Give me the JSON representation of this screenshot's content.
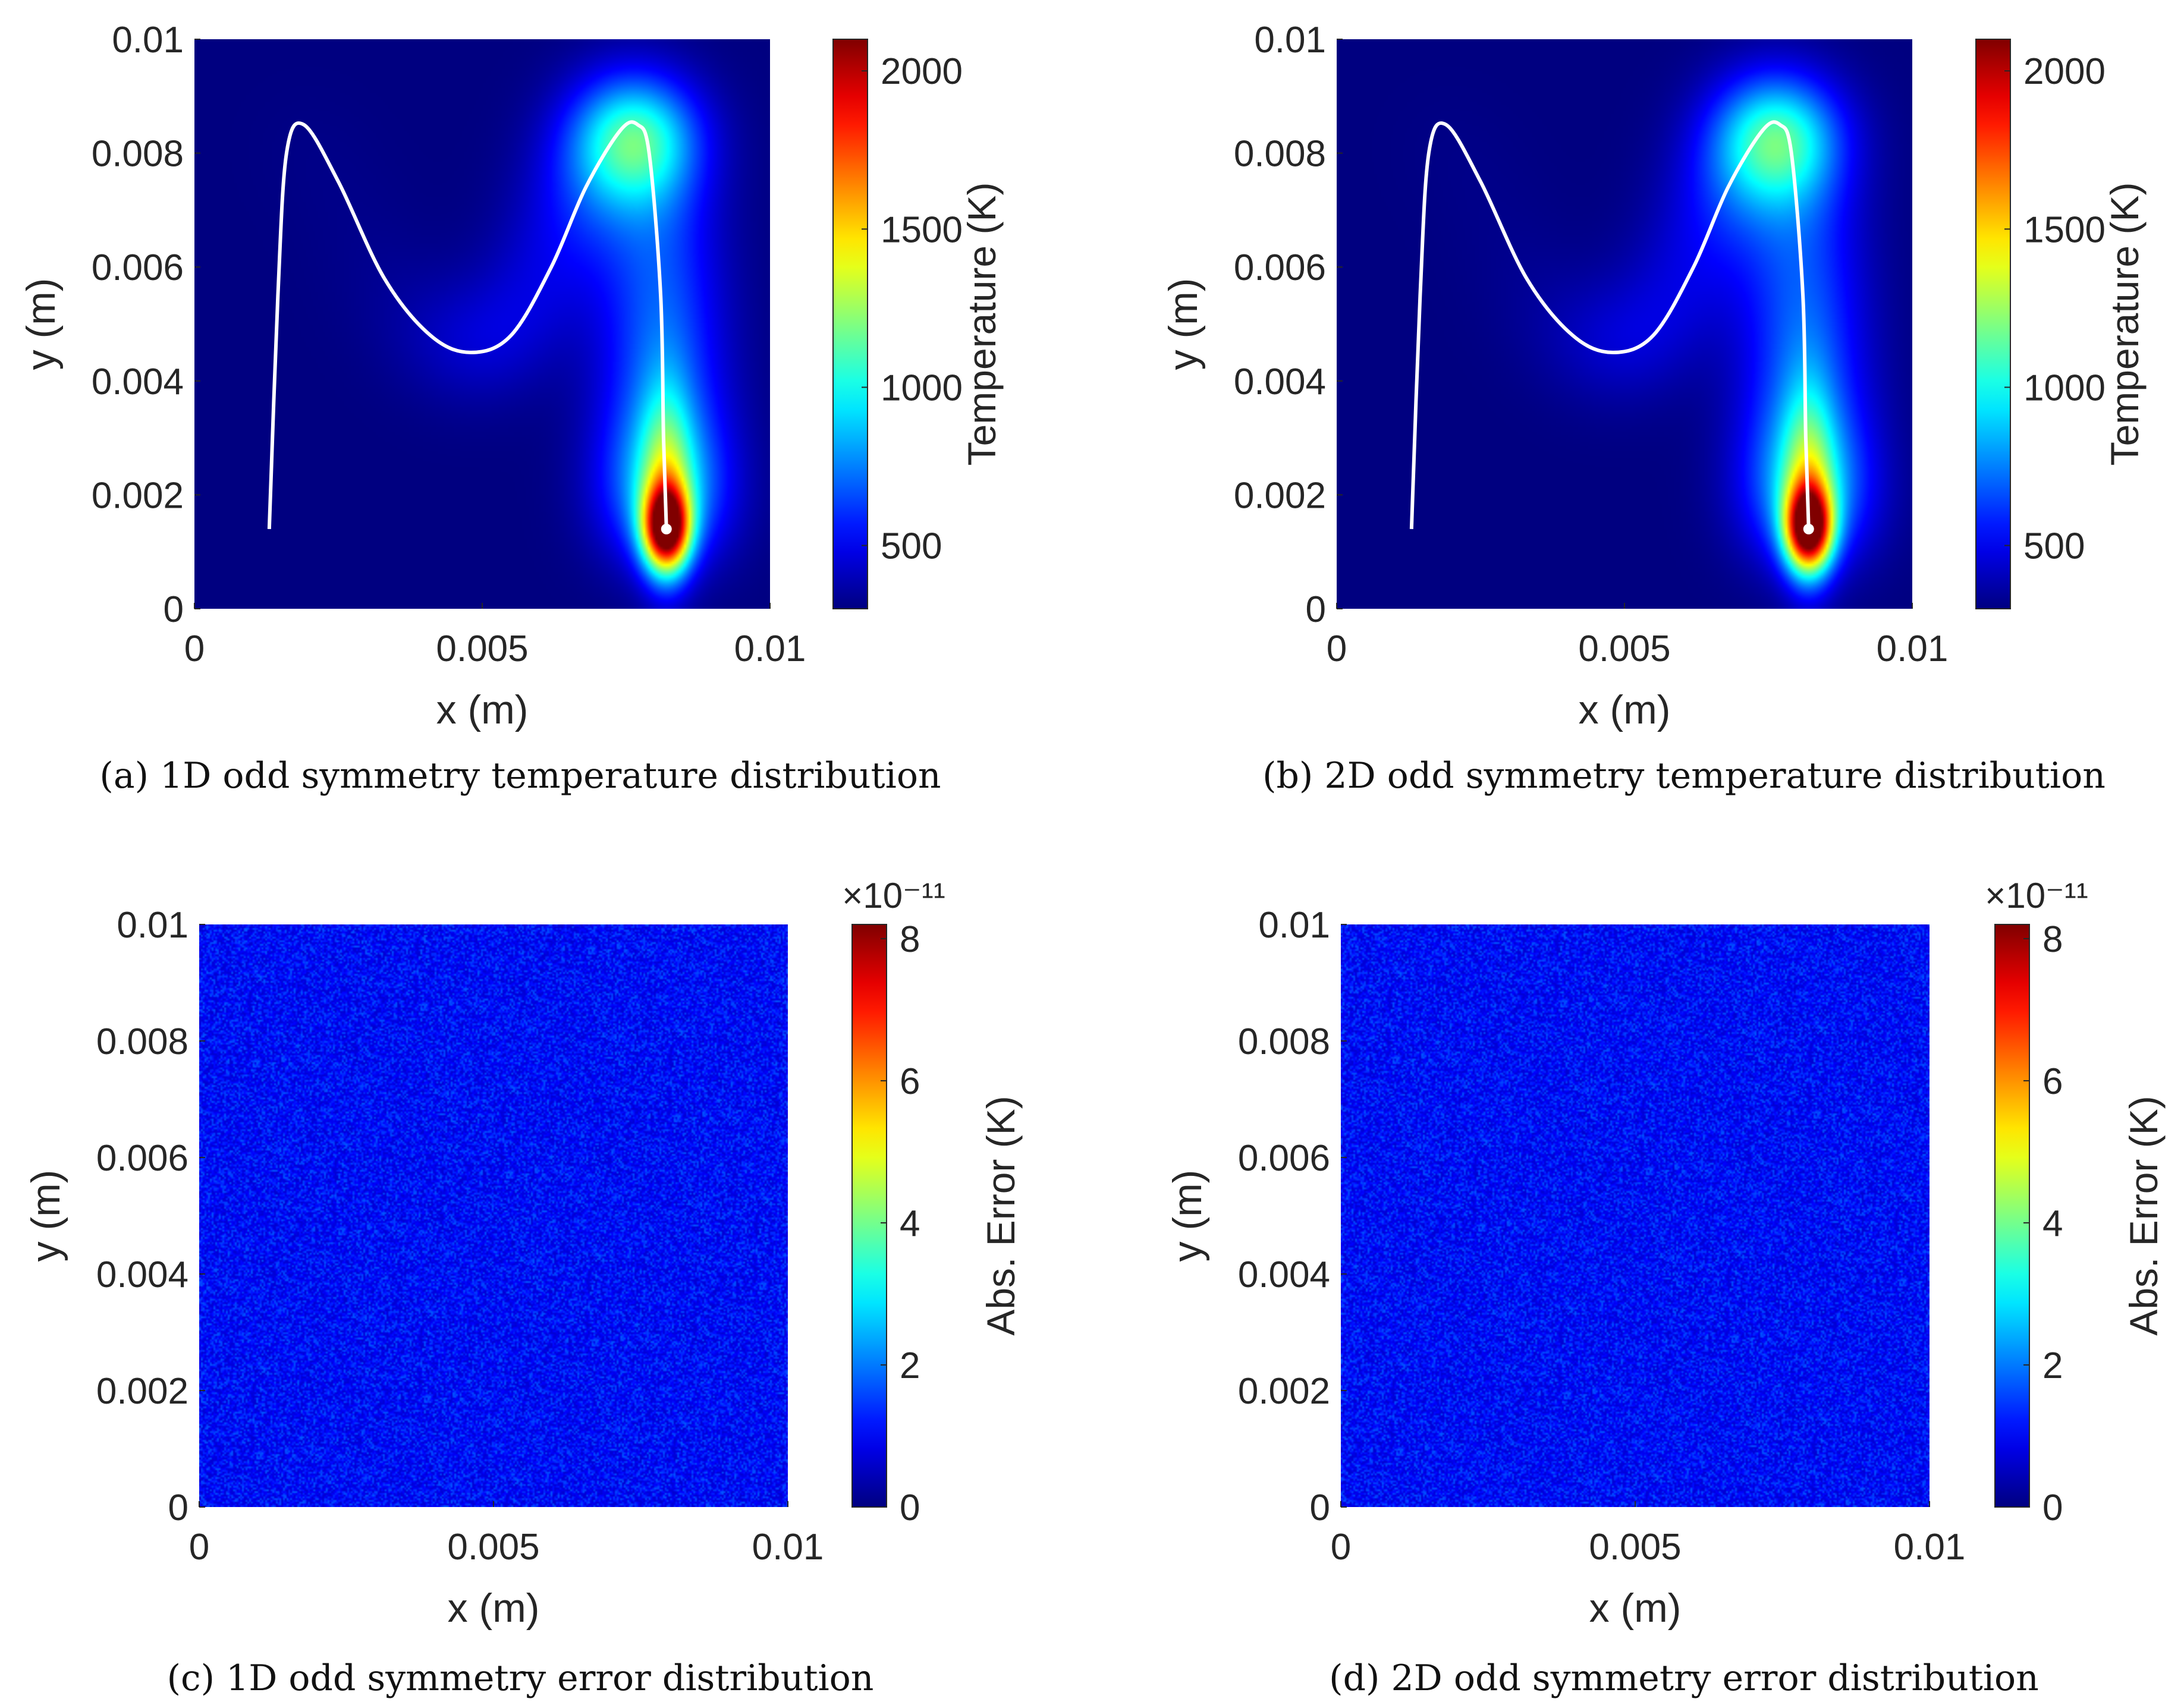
{
  "figure": {
    "panels": [
      {
        "id": "a",
        "caption": "(a)  1D odd symmetry temperature distribution",
        "kind": "temperature",
        "xlabel": "x (m)",
        "ylabel": "y (m)",
        "xticks": [
          "0",
          "0.005",
          "0.01"
        ],
        "yticks": [
          "0",
          "0.002",
          "0.004",
          "0.006",
          "0.008",
          "0.01"
        ],
        "colorbar_label": "Temperature (K)",
        "colorbar_ticks": [
          "500",
          "1000",
          "1500",
          "2000"
        ],
        "colorbar_multiplier": ""
      },
      {
        "id": "b",
        "caption": "(b)  2D odd symmetry temperature distribution",
        "kind": "temperature",
        "xlabel": "x (m)",
        "ylabel": "y (m)",
        "xticks": [
          "0",
          "0.005",
          "0.01"
        ],
        "yticks": [
          "0",
          "0.002",
          "0.004",
          "0.006",
          "0.008",
          "0.01"
        ],
        "colorbar_label": "Temperature (K)",
        "colorbar_ticks": [
          "500",
          "1000",
          "1500",
          "2000"
        ],
        "colorbar_multiplier": ""
      },
      {
        "id": "c",
        "caption": "(c)  1D odd symmetry error distribution",
        "kind": "error",
        "xlabel": "x (m)",
        "ylabel": "y (m)",
        "xticks": [
          "0",
          "0.005",
          "0.01"
        ],
        "yticks": [
          "0",
          "0.002",
          "0.004",
          "0.006",
          "0.008",
          "0.01"
        ],
        "colorbar_label": "Abs. Error (K)",
        "colorbar_ticks": [
          "0",
          "2",
          "4",
          "6",
          "8"
        ],
        "colorbar_multiplier": "×10⁻¹¹"
      },
      {
        "id": "d",
        "caption": "(d)  2D odd symmetry error distribution",
        "kind": "error",
        "xlabel": "x (m)",
        "ylabel": "y (m)",
        "xticks": [
          "0",
          "0.005",
          "0.01"
        ],
        "yticks": [
          "0",
          "0.002",
          "0.004",
          "0.006",
          "0.008",
          "0.01"
        ],
        "colorbar_label": "Abs. Error (K)",
        "colorbar_ticks": [
          "0",
          "2",
          "4",
          "6",
          "8"
        ],
        "colorbar_multiplier": "×10⁻¹¹"
      }
    ]
  },
  "chart_data": [
    {
      "type": "heatmap",
      "panel": "a",
      "title": "",
      "xlabel": "x (m)",
      "ylabel": "y (m)",
      "xlim": [
        0,
        0.01
      ],
      "ylim": [
        0,
        0.01
      ],
      "colorbar": {
        "label": "Temperature (K)",
        "range": [
          300,
          2100
        ],
        "ticks": [
          500,
          1000,
          1500,
          2000
        ],
        "colormap": "jet"
      },
      "scan_path": {
        "x": [
          0.0013,
          0.00145,
          0.0016,
          0.0019,
          0.0025,
          0.0033,
          0.0041,
          0.0048,
          0.0055,
          0.0062,
          0.0068,
          0.0074,
          0.0077,
          0.0079,
          0.0081,
          0.00815,
          0.0082
        ],
        "y": [
          0.0014,
          0.0055,
          0.008,
          0.0085,
          0.0075,
          0.0058,
          0.0048,
          0.0045,
          0.0048,
          0.006,
          0.0074,
          0.0084,
          0.0085,
          0.008,
          0.0055,
          0.003,
          0.0014
        ]
      },
      "hotspot": {
        "x": 0.0082,
        "y": 0.0014,
        "peak_temperature": 2100
      },
      "ambient_temperature": 300
    },
    {
      "type": "heatmap",
      "panel": "b",
      "title": "",
      "xlabel": "x (m)",
      "ylabel": "y (m)",
      "xlim": [
        0,
        0.01
      ],
      "ylim": [
        0,
        0.01
      ],
      "colorbar": {
        "label": "Temperature (K)",
        "range": [
          300,
          2100
        ],
        "ticks": [
          500,
          1000,
          1500,
          2000
        ],
        "colormap": "jet"
      },
      "scan_path": {
        "x": [
          0.0013,
          0.00145,
          0.0016,
          0.0019,
          0.0025,
          0.0033,
          0.0041,
          0.0048,
          0.0055,
          0.0062,
          0.0068,
          0.0074,
          0.0077,
          0.0079,
          0.0081,
          0.00815,
          0.0082
        ],
        "y": [
          0.0014,
          0.0055,
          0.008,
          0.0085,
          0.0075,
          0.0058,
          0.0048,
          0.0045,
          0.0048,
          0.006,
          0.0074,
          0.0084,
          0.0085,
          0.008,
          0.0055,
          0.003,
          0.0014
        ]
      },
      "hotspot": {
        "x": 0.0082,
        "y": 0.0014,
        "peak_temperature": 2100
      },
      "ambient_temperature": 300
    },
    {
      "type": "heatmap",
      "panel": "c",
      "title": "",
      "xlabel": "x (m)",
      "ylabel": "y (m)",
      "xlim": [
        0,
        0.01
      ],
      "ylim": [
        0,
        0.01
      ],
      "colorbar": {
        "label": "Abs. Error (K)",
        "range": [
          0,
          8.2e-11
        ],
        "ticks": [
          0,
          2,
          4,
          6,
          8
        ],
        "multiplier": "×10⁻¹¹",
        "colormap": "jet"
      },
      "field": "uniform random noise",
      "typical_value": 1.2e-11
    },
    {
      "type": "heatmap",
      "panel": "d",
      "title": "",
      "xlabel": "x (m)",
      "ylabel": "y (m)",
      "xlim": [
        0,
        0.01
      ],
      "ylim": [
        0,
        0.01
      ],
      "colorbar": {
        "label": "Abs. Error (K)",
        "range": [
          0,
          8.2e-11
        ],
        "ticks": [
          0,
          2,
          4,
          6,
          8
        ],
        "multiplier": "×10⁻¹¹",
        "colormap": "jet"
      },
      "field": "uniform random noise",
      "typical_value": 1.2e-11
    }
  ]
}
